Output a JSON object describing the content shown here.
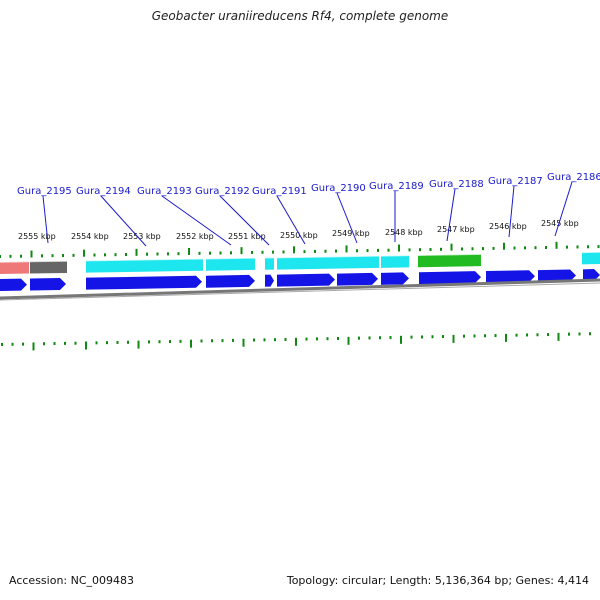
{
  "title": "Geobacter uraniireducens Rf4, complete genome",
  "footer": {
    "accession": "Accession: NC_009483",
    "summary": "Topology: circular; Length: 5,136,364 bp; Genes: 4,414"
  },
  "colors": {
    "gene_label": "#1a1acc",
    "gene_arrow": "#1414e6",
    "cds_cyan": "#1ee6ee",
    "cds_green": "#22bb22",
    "cds_red": "#ee7777",
    "cds_gray": "#666666",
    "tick": "#118811",
    "backbone": "#777777"
  },
  "kbp_labels": [
    "2555 kbp",
    "2554 kbp",
    "2553 kbp",
    "2552 kbp",
    "2551 kbp",
    "2550 kbp",
    "2549 kbp",
    "2548 kbp",
    "2547 kbp",
    "2546 kbp",
    "2545 kbp"
  ],
  "gene_labels": [
    "Gura_2195",
    "Gura_2194",
    "Gura_2193",
    "Gura_2192",
    "Gura_2191",
    "Gura_2190",
    "Gura_2189",
    "Gura_2188",
    "Gura_2187",
    "Gura_2186"
  ]
}
